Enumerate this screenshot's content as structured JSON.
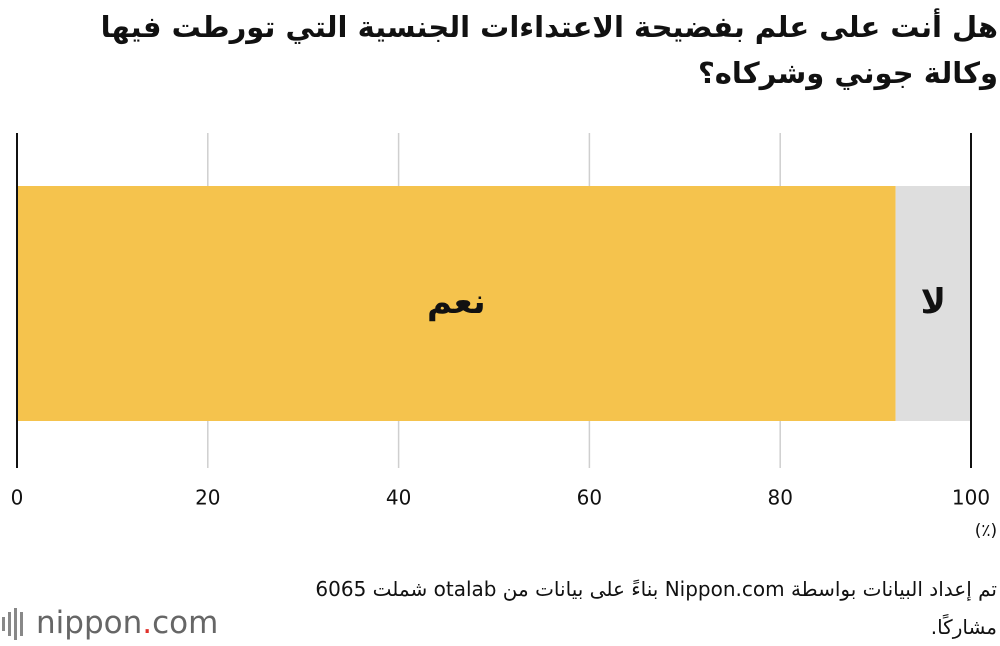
{
  "title": "هل أنت على علم بفضيحة الاعتداءات الجنسية التي تورطت فيها وكالة جوني وشركاه؟",
  "chart_data": {
    "type": "bar",
    "orientation": "horizontal",
    "stacked": true,
    "categories": [
      null
    ],
    "series": [
      {
        "name": "نعم",
        "color": "#f5c34d",
        "values": [
          92.1
        ]
      },
      {
        "name": "لا",
        "color": "#dedede",
        "values": [
          7.9
        ]
      }
    ],
    "xlim": [
      0,
      100
    ],
    "xticks": [
      0,
      20,
      40,
      60,
      80,
      100
    ],
    "x_unit": "(٪)",
    "grid": true
  },
  "source": "تم إعداد البيانات بواسطة Nippon.com بناءً على بيانات من otalab شملت 6065 مشاركًا.",
  "logo": {
    "name": "nippon",
    "dot": ".",
    "tld": "com"
  }
}
